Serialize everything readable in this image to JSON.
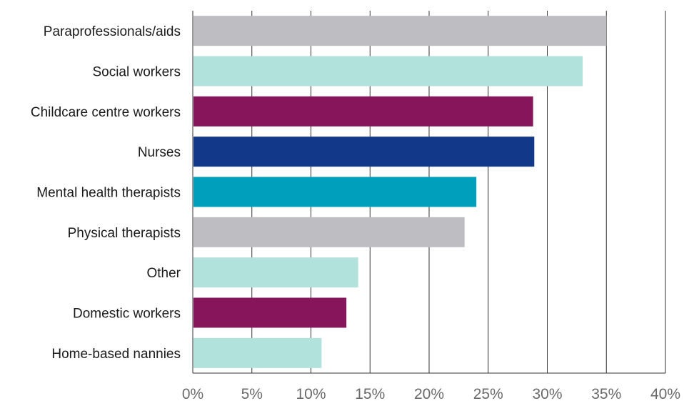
{
  "chart_data": {
    "type": "bar",
    "orientation": "horizontal",
    "categories": [
      "Paraprofessionals/aids",
      "Social workers",
      "Childcare centre workers",
      "Nurses",
      "Mental health therapists",
      "Physical therapists",
      "Other",
      "Domestic workers",
      "Home-based nannies"
    ],
    "values": [
      35,
      33,
      28.8,
      28.9,
      24,
      23,
      14,
      13,
      10.9
    ],
    "bar_colors": [
      "#bdbdc2",
      "#b2e2dc",
      "#86155b",
      "#12388a",
      "#009fbc",
      "#bdbdc2",
      "#b2e2dc",
      "#86155b",
      "#b2e2dc"
    ],
    "title": "",
    "xlabel": "",
    "ylabel": "",
    "xlim": [
      0,
      40
    ],
    "x_ticks": [
      0,
      5,
      10,
      15,
      20,
      25,
      30,
      35,
      40
    ],
    "x_tick_labels": [
      "0%",
      "5%",
      "10%",
      "15%",
      "20%",
      "25%",
      "30%",
      "35%",
      "40%"
    ],
    "grid": "vertical",
    "legend": "none"
  }
}
